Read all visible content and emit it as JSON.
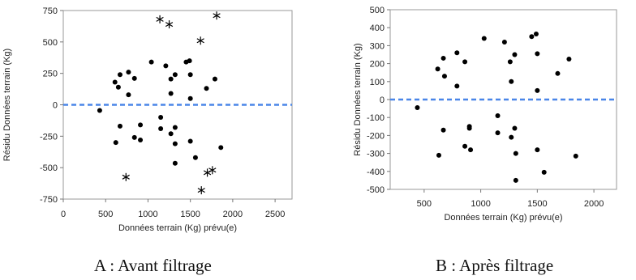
{
  "chart_data": [
    {
      "type": "scatter",
      "caption": "A : Avant filtrage",
      "xlabel": "Données terrain (Kg) prévu(e)",
      "ylabel": "Résidu Données terrain (Kg)",
      "xlim": [
        0,
        2700
      ],
      "ylim": [
        -750,
        750
      ],
      "xticks": [
        "0",
        "500",
        "1000",
        "1500",
        "2000",
        "2500"
      ],
      "yticks": [
        "750",
        "500",
        "250",
        "0",
        "-250",
        "-500",
        "-750"
      ],
      "reference_line": {
        "y": 0,
        "color": "#4a86e8",
        "style": "dashed"
      },
      "dot_points": [
        [
          430,
          -45
        ],
        [
          610,
          180
        ],
        [
          620,
          -300
        ],
        [
          650,
          140
        ],
        [
          670,
          240
        ],
        [
          670,
          -170
        ],
        [
          770,
          260
        ],
        [
          770,
          80
        ],
        [
          840,
          210
        ],
        [
          840,
          -260
        ],
        [
          910,
          -160
        ],
        [
          910,
          -280
        ],
        [
          1040,
          340
        ],
        [
          1150,
          -100
        ],
        [
          1150,
          -190
        ],
        [
          1210,
          310
        ],
        [
          1270,
          205
        ],
        [
          1270,
          90
        ],
        [
          1270,
          -230
        ],
        [
          1320,
          240
        ],
        [
          1320,
          -180
        ],
        [
          1320,
          -310
        ],
        [
          1320,
          -465
        ],
        [
          1450,
          340
        ],
        [
          1490,
          350
        ],
        [
          1500,
          240
        ],
        [
          1500,
          50
        ],
        [
          1500,
          -290
        ],
        [
          1560,
          -420
        ],
        [
          1690,
          130
        ],
        [
          1790,
          205
        ],
        [
          1860,
          -340
        ]
      ],
      "star_points": [
        [
          740,
          -575
        ],
        [
          1140,
          680
        ],
        [
          1250,
          640
        ],
        [
          1620,
          510
        ],
        [
          1630,
          -680
        ],
        [
          1700,
          -540
        ],
        [
          1760,
          -520
        ],
        [
          1810,
          710
        ]
      ]
    },
    {
      "type": "scatter",
      "caption": "B : Après filtrage",
      "xlabel": "Données terrain (Kg) prévu(e)",
      "ylabel": "Résidu Données terrain (Kg)",
      "xlim": [
        200,
        2200
      ],
      "ylim": [
        -500,
        500
      ],
      "xticks": [
        "500",
        "1000",
        "1500",
        "2000"
      ],
      "yticks": [
        "500",
        "400",
        "300",
        "200",
        "100",
        "0",
        "-100",
        "-200",
        "-300",
        "-400",
        "-500"
      ],
      "reference_line": {
        "y": 0,
        "color": "#4a86e8",
        "style": "dashed"
      },
      "dot_points": [
        [
          440,
          -45
        ],
        [
          620,
          170
        ],
        [
          630,
          -310
        ],
        [
          670,
          230
        ],
        [
          670,
          -170
        ],
        [
          680,
          130
        ],
        [
          790,
          260
        ],
        [
          790,
          75
        ],
        [
          860,
          210
        ],
        [
          860,
          -260
        ],
        [
          900,
          -160
        ],
        [
          910,
          -280
        ],
        [
          900,
          -150
        ],
        [
          1030,
          340
        ],
        [
          1150,
          -90
        ],
        [
          1150,
          -185
        ],
        [
          1210,
          320
        ],
        [
          1260,
          210
        ],
        [
          1270,
          100
        ],
        [
          1270,
          -210
        ],
        [
          1300,
          250
        ],
        [
          1300,
          -160
        ],
        [
          1310,
          -300
        ],
        [
          1310,
          -450
        ],
        [
          1450,
          350
        ],
        [
          1490,
          365
        ],
        [
          1500,
          255
        ],
        [
          1500,
          50
        ],
        [
          1500,
          -280
        ],
        [
          1560,
          -405
        ],
        [
          1680,
          145
        ],
        [
          1780,
          225
        ],
        [
          1840,
          -315
        ]
      ],
      "star_points": []
    }
  ]
}
